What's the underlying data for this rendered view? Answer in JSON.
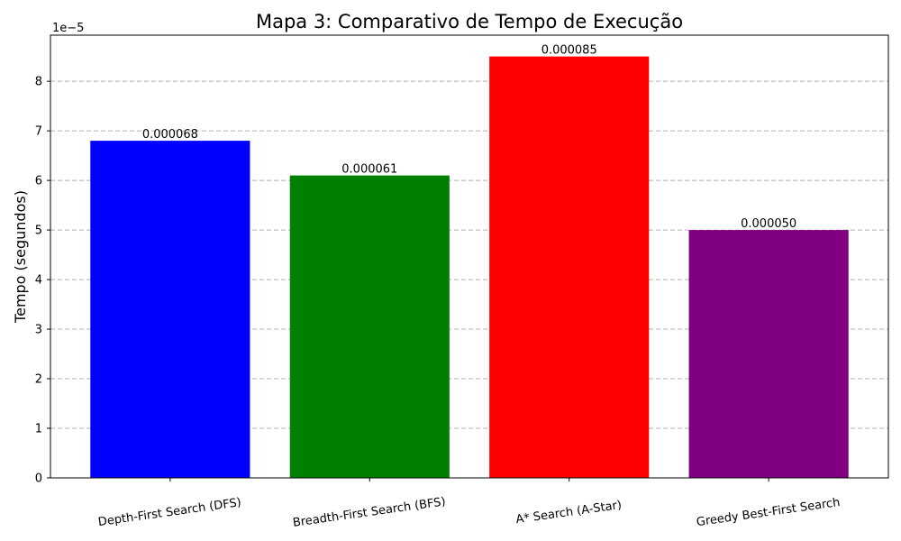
{
  "chart_data": {
    "type": "bar",
    "title": "Mapa 3: Comparativo de Tempo de Execução",
    "xlabel": "",
    "ylabel": "Tempo (segundos)",
    "y_offset_label": "1e−5",
    "categories": [
      "Depth-First Search (DFS)",
      "Breadth-First Search (BFS)",
      "A* Search (A-Star)",
      "Greedy Best-First Search"
    ],
    "values": [
      6.8e-05,
      6.1e-05,
      8.5e-05,
      5e-05
    ],
    "value_labels": [
      "0.000068",
      "0.000061",
      "0.000085",
      "0.000050"
    ],
    "colors": [
      "#0000ff",
      "#008000",
      "#ff0000",
      "#800080"
    ],
    "ylim": [
      0,
      8.93e-05
    ],
    "yticks": [
      0,
      1,
      2,
      3,
      4,
      5,
      6,
      7,
      8
    ],
    "ytick_scale": 1e-05,
    "grid": "y-dashed",
    "legend": "none",
    "xtick_rotation": "slight-counterclockwise"
  }
}
